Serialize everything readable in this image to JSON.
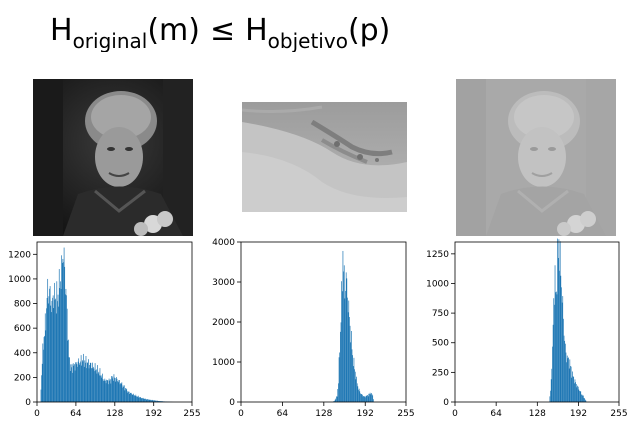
{
  "formula": {
    "h1": "H",
    "sub1": "original",
    "arg1": "(m)",
    "op": "≤",
    "h2": "H",
    "sub2": "objetivo",
    "arg2": "(p)"
  },
  "images": [
    {
      "kind": "portrait-original",
      "tone": "dark, high contrast"
    },
    {
      "kind": "landscape-target",
      "tone": "light gray, low contrast"
    },
    {
      "kind": "portrait-result",
      "tone": "light gray, low contrast"
    }
  ],
  "colors": {
    "bar": "#1f77b4",
    "axis": "#000000"
  },
  "chart_data": [
    {
      "type": "bar",
      "title": "",
      "xlabel": "",
      "ylabel": "",
      "xlim": [
        0,
        255
      ],
      "ylim": [
        0,
        1300
      ],
      "xticks": [
        "0",
        "64",
        "128",
        "192",
        "255"
      ],
      "yticks": [
        "0",
        "200",
        "400",
        "600",
        "800",
        "1000",
        "1200"
      ],
      "yticks_values": [
        0,
        200,
        400,
        600,
        800,
        1000,
        1200
      ],
      "profile": [
        [
          0,
          0
        ],
        [
          5,
          0
        ],
        [
          8,
          330
        ],
        [
          10,
          480
        ],
        [
          14,
          660
        ],
        [
          16,
          870
        ],
        [
          20,
          900
        ],
        [
          24,
          760
        ],
        [
          26,
          880
        ],
        [
          30,
          830
        ],
        [
          34,
          860
        ],
        [
          36,
          930
        ],
        [
          40,
          1050
        ],
        [
          42,
          1230
        ],
        [
          44,
          1150
        ],
        [
          46,
          980
        ],
        [
          48,
          830
        ],
        [
          50,
          590
        ],
        [
          52,
          360
        ],
        [
          55,
          280
        ],
        [
          60,
          290
        ],
        [
          65,
          310
        ],
        [
          70,
          330
        ],
        [
          75,
          340
        ],
        [
          80,
          325
        ],
        [
          88,
          300
        ],
        [
          96,
          270
        ],
        [
          104,
          230
        ],
        [
          110,
          175
        ],
        [
          116,
          170
        ],
        [
          120,
          175
        ],
        [
          125,
          205
        ],
        [
          130,
          185
        ],
        [
          136,
          160
        ],
        [
          142,
          125
        ],
        [
          150,
          80
        ],
        [
          160,
          55
        ],
        [
          170,
          35
        ],
        [
          180,
          22
        ],
        [
          190,
          14
        ],
        [
          200,
          8
        ],
        [
          210,
          4
        ],
        [
          218,
          2
        ],
        [
          225,
          0
        ],
        [
          255,
          0
        ]
      ]
    },
    {
      "type": "bar",
      "title": "",
      "xlabel": "",
      "ylabel": "",
      "xlim": [
        0,
        255
      ],
      "ylim": [
        0,
        4000
      ],
      "xticks": [
        "0",
        "64",
        "128",
        "192",
        "255"
      ],
      "yticks": [
        "0",
        "1000",
        "2000",
        "3000",
        "4000"
      ],
      "yticks_values": [
        0,
        1000,
        2000,
        3000,
        4000
      ],
      "profile": [
        [
          0,
          0
        ],
        [
          141,
          0
        ],
        [
          144,
          30
        ],
        [
          148,
          150
        ],
        [
          150,
          500
        ],
        [
          152,
          1400
        ],
        [
          154,
          2100
        ],
        [
          156,
          3100
        ],
        [
          157,
          3850
        ],
        [
          158,
          3300
        ],
        [
          160,
          2800
        ],
        [
          162,
          3100
        ],
        [
          164,
          2700
        ],
        [
          166,
          2300
        ],
        [
          168,
          1900
        ],
        [
          170,
          1550
        ],
        [
          172,
          1150
        ],
        [
          175,
          850
        ],
        [
          178,
          550
        ],
        [
          181,
          330
        ],
        [
          185,
          200
        ],
        [
          190,
          130
        ],
        [
          195,
          160
        ],
        [
          200,
          230
        ],
        [
          203,
          160
        ],
        [
          205,
          0
        ],
        [
          255,
          0
        ]
      ]
    },
    {
      "type": "bar",
      "title": "",
      "xlabel": "",
      "ylabel": "",
      "xlim": [
        0,
        255
      ],
      "ylim": [
        0,
        1350
      ],
      "xticks": [
        "0",
        "64",
        "128",
        "192",
        "255"
      ],
      "yticks": [
        "0",
        "250",
        "500",
        "750",
        "1000",
        "1250"
      ],
      "yticks_values": [
        0,
        250,
        500,
        750,
        1000,
        1250
      ],
      "profile": [
        [
          0,
          0
        ],
        [
          146,
          0
        ],
        [
          148,
          90
        ],
        [
          151,
          420
        ],
        [
          153,
          880
        ],
        [
          155,
          1000
        ],
        [
          157,
          920
        ],
        [
          159,
          1180
        ],
        [
          161,
          1370
        ],
        [
          162,
          1250
        ],
        [
          164,
          1100
        ],
        [
          166,
          900
        ],
        [
          168,
          700
        ],
        [
          170,
          520
        ],
        [
          172,
          400
        ],
        [
          175,
          360
        ],
        [
          178,
          330
        ],
        [
          181,
          250
        ],
        [
          184,
          200
        ],
        [
          188,
          150
        ],
        [
          192,
          110
        ],
        [
          196,
          70
        ],
        [
          200,
          40
        ],
        [
          204,
          0
        ],
        [
          255,
          0
        ]
      ]
    }
  ]
}
